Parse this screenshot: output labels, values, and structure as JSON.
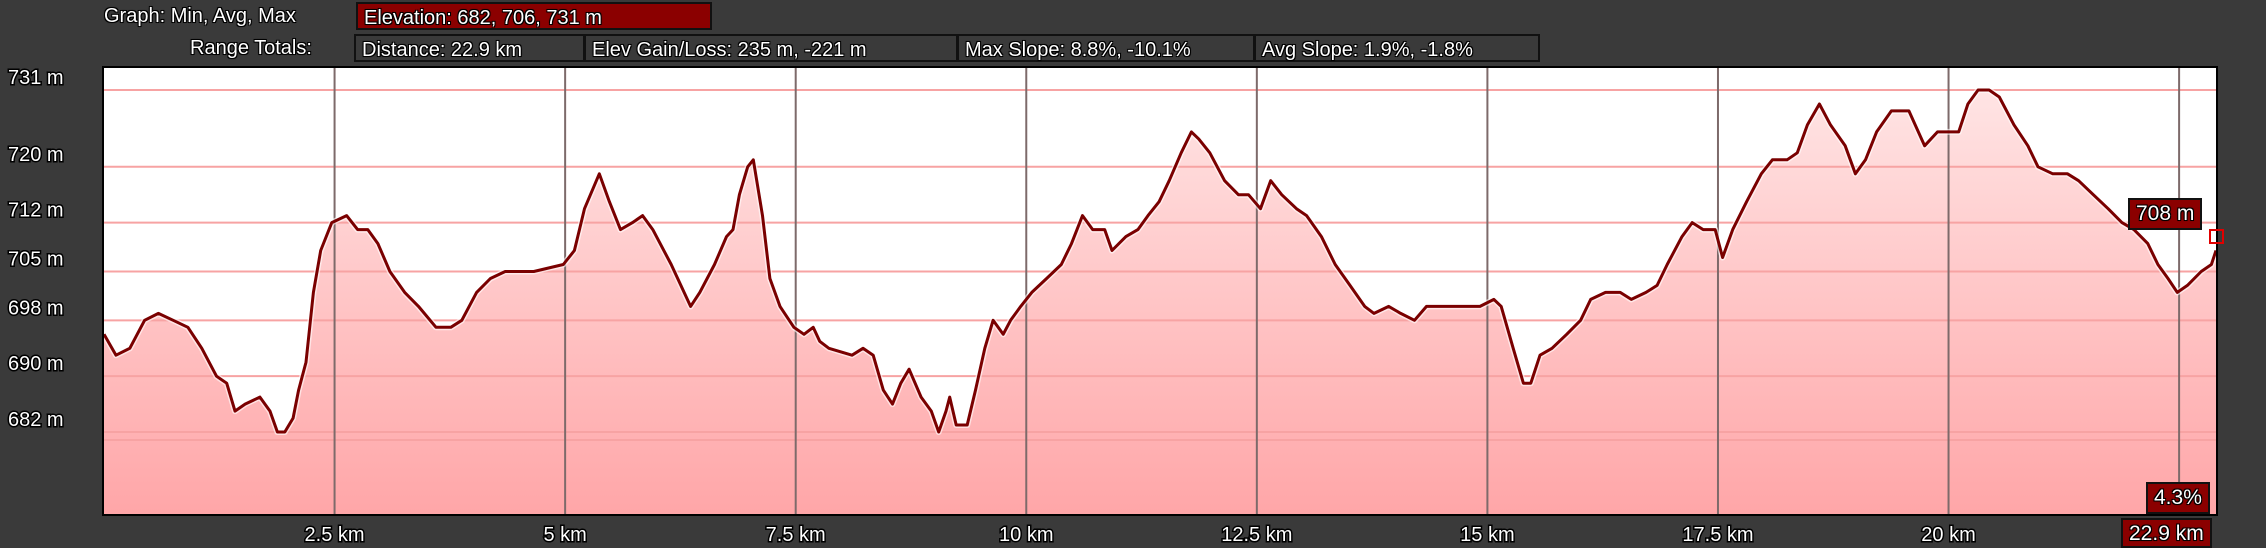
{
  "header": {
    "graph_label": "Graph: Min, Avg, Max",
    "elevation": "Elevation: 682, 706, 731 m",
    "range_label": "Range Totals:",
    "distance": "Distance: 22.9 km",
    "elev_gain_loss": "Elev Gain/Loss: 235 m, -221 m",
    "max_slope": "Max Slope: 8.8%, -10.1%",
    "avg_slope": "Avg Slope: 1.9%, -1.8%"
  },
  "cursor": {
    "elevation_label": "708 m",
    "slope_label": "4.3%",
    "distance_label": "22.9 km"
  },
  "colors": {
    "line": "#7a0000",
    "fill_top": "#ffe4e4",
    "fill_bottom": "#ffa6a8",
    "grid_h": "#f7a3a3",
    "grid_v": "#7d6a6a",
    "badge": "#8b0000",
    "background": "#3a3a3a"
  },
  "chart_data": {
    "type": "area",
    "xlabel": "",
    "ylabel": "",
    "xlim": [
      0,
      22.9
    ],
    "ylim": [
      670,
      734
    ],
    "grid": true,
    "y_ticks": [
      {
        "value": 731,
        "label": "731 m"
      },
      {
        "value": 720,
        "label": "720 m"
      },
      {
        "value": 712,
        "label": "712 m"
      },
      {
        "value": 705,
        "label": "705 m"
      },
      {
        "value": 698,
        "label": "698 m"
      },
      {
        "value": 690,
        "label": "690 m"
      },
      {
        "value": 682,
        "label": "682 m"
      }
    ],
    "x_ticks": [
      {
        "value": 2.5,
        "label": "2.5 km"
      },
      {
        "value": 5,
        "label": "5 km"
      },
      {
        "value": 7.5,
        "label": "7.5 km"
      },
      {
        "value": 10,
        "label": "10 km"
      },
      {
        "value": 12.5,
        "label": "12.5 km"
      },
      {
        "value": 15,
        "label": "15 km"
      },
      {
        "value": 17.5,
        "label": "17.5 km"
      },
      {
        "value": 20,
        "label": "20 km"
      },
      {
        "value": 22.5,
        "label": ""
      }
    ],
    "x": [
      0,
      0.13,
      0.28,
      0.44,
      0.59,
      0.75,
      0.91,
      1.06,
      1.22,
      1.33,
      1.42,
      1.53,
      1.69,
      1.8,
      1.88,
      1.96,
      2.05,
      2.11,
      2.19,
      2.27,
      2.35,
      2.47,
      2.63,
      2.75,
      2.86,
      2.97,
      3.1,
      3.26,
      3.41,
      3.6,
      3.76,
      3.88,
      4.04,
      4.19,
      4.35,
      4.66,
      4.98,
      5.1,
      5.21,
      5.37,
      5.48,
      5.6,
      5.73,
      5.84,
      5.95,
      6.15,
      6.36,
      6.46,
      6.62,
      6.75,
      6.82,
      6.89,
      6.98,
      7.04,
      7.14,
      7.22,
      7.33,
      7.48,
      7.59,
      7.69,
      7.76,
      7.86,
      8.11,
      8.23,
      8.34,
      8.45,
      8.55,
      8.64,
      8.73,
      8.86,
      8.97,
      9.05,
      9.13,
      9.17,
      9.24,
      9.36,
      9.45,
      9.55,
      9.64,
      9.75,
      9.83,
      9.94,
      10.06,
      10.22,
      10.38,
      10.49,
      10.61,
      10.72,
      10.85,
      10.93,
      11.08,
      11.21,
      11.32,
      11.44,
      11.55,
      11.68,
      11.79,
      11.87,
      11.99,
      12.15,
      12.3,
      12.41,
      12.54,
      12.65,
      12.77,
      12.93,
      13.04,
      13.2,
      13.35,
      13.51,
      13.67,
      13.77,
      13.93,
      14.06,
      14.21,
      14.34,
      14.46,
      14.6,
      14.76,
      14.92,
      15.07,
      15.15,
      15.28,
      15.39,
      15.47,
      15.57,
      15.7,
      15.86,
      16.01,
      16.12,
      16.28,
      16.44,
      16.56,
      16.72,
      16.84,
      16.95,
      17.11,
      17.22,
      17.34,
      17.47,
      17.55,
      17.66,
      17.81,
      17.97,
      18.09,
      18.25,
      18.36,
      18.47,
      18.6,
      18.72,
      18.88,
      18.99,
      19.1,
      19.22,
      19.38,
      19.57,
      19.74,
      19.88,
      20.11,
      20.21,
      20.32,
      20.44,
      20.55,
      20.71,
      20.86,
      20.97,
      21.13,
      21.29,
      21.41,
      21.57,
      21.73,
      21.88,
      22.01,
      22.16,
      22.27,
      22.38,
      22.48,
      22.59,
      22.74,
      22.85,
      22.9
    ],
    "y": [
      696,
      693,
      694,
      698,
      699,
      698,
      697,
      694,
      690,
      689,
      685,
      686,
      687,
      685,
      682,
      682,
      684,
      688,
      692,
      702,
      708,
      712,
      713,
      711,
      711,
      709,
      705,
      702,
      700,
      697,
      697,
      698,
      702,
      704,
      705,
      705,
      706,
      708,
      714,
      719,
      715,
      711,
      712,
      713,
      711,
      706,
      700,
      702,
      706,
      710,
      711,
      716,
      720,
      721,
      713,
      704,
      700,
      697,
      696,
      697,
      695,
      694,
      693,
      694,
      693,
      688,
      686,
      689,
      691,
      687,
      685,
      682,
      685,
      687,
      683,
      683,
      688,
      694,
      698,
      696,
      698,
      700,
      702,
      704,
      706,
      709,
      713,
      711,
      711,
      708,
      710,
      711,
      713,
      715,
      718,
      722,
      725,
      724,
      722,
      718,
      716,
      716,
      714,
      718,
      716,
      714,
      713,
      710,
      706,
      703,
      700,
      699,
      700,
      699,
      698,
      700,
      700,
      700,
      700,
      700,
      701,
      700,
      694,
      689,
      689,
      693,
      694,
      696,
      698,
      701,
      702,
      702,
      701,
      702,
      703,
      706,
      710,
      712,
      711,
      711,
      707,
      711,
      715,
      719,
      721,
      721,
      722,
      726,
      729,
      726,
      723,
      719,
      721,
      725,
      728,
      728,
      723,
      725,
      725,
      729,
      731,
      731,
      730,
      726,
      723,
      720,
      719,
      719,
      718,
      716,
      714,
      712,
      711,
      709,
      706,
      704,
      702,
      703,
      705,
      706,
      708
    ]
  }
}
